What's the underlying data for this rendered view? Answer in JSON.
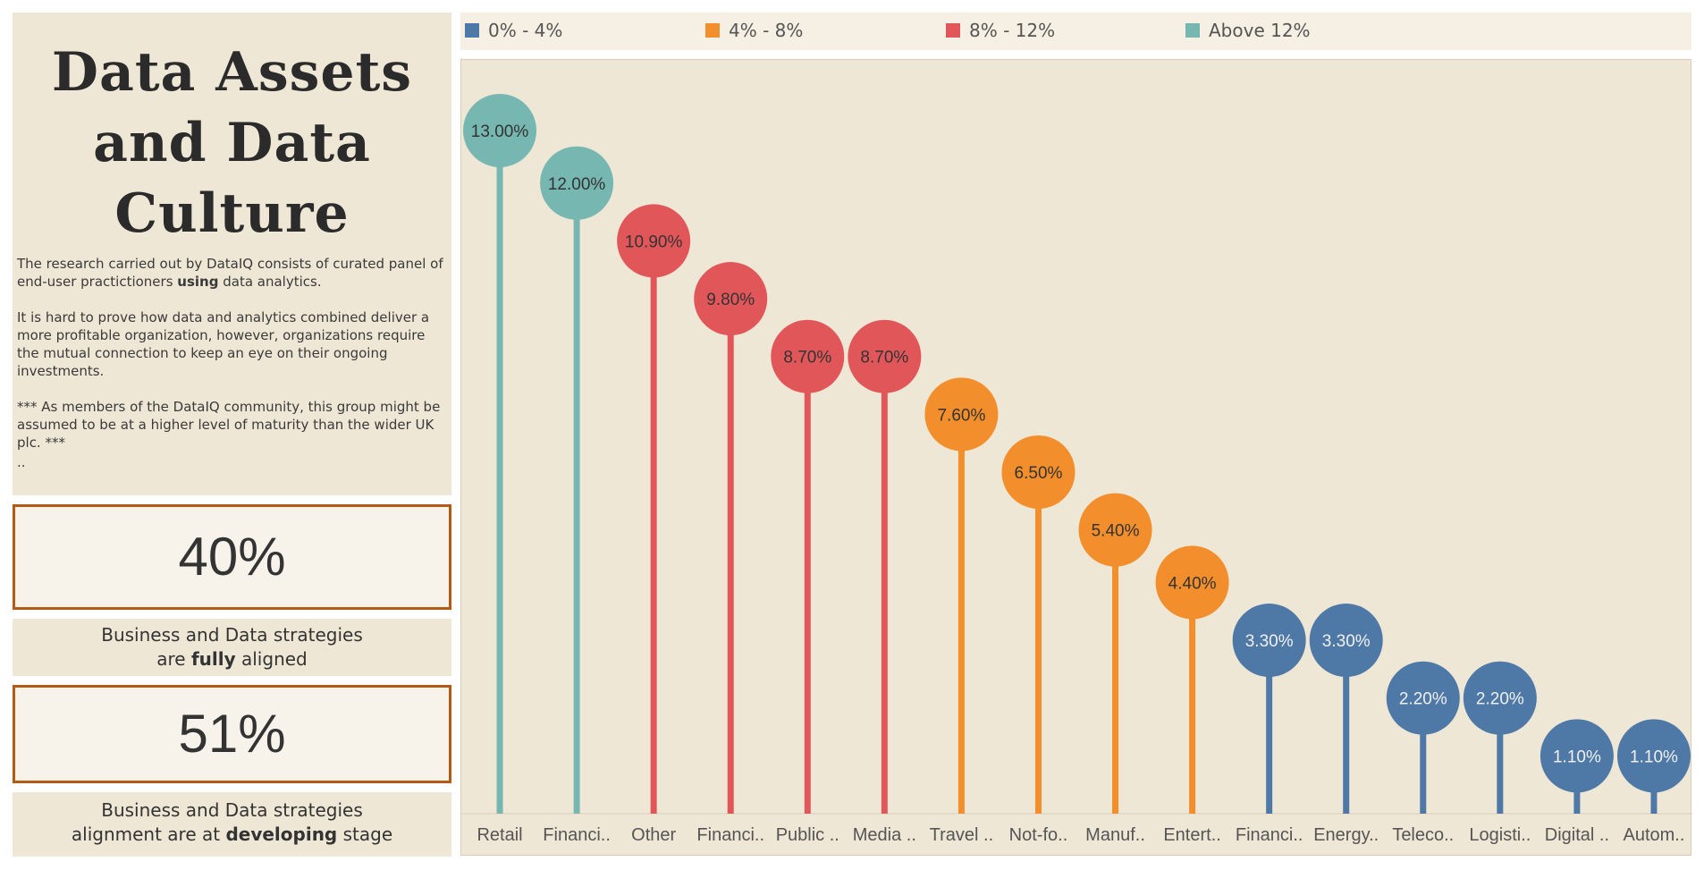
{
  "page": {
    "title": "Data Assets\nand Data\nCulture",
    "paragraph1_before": "The research carried out by DataIQ consists of curated panel of end-user practictioners ",
    "paragraph1_bold": "using",
    "paragraph1_after": " data analytics.",
    "paragraph2": "It is hard to prove how data and analytics combined deliver a more profitable organization, however, organizations require the mutual connection to keep an eye on their ongoing investments.",
    "paragraph3": "*** As members of the DataIQ community, this group might be assumed to be at a higher level of maturity than the wider UK plc. ***",
    "dots": "..",
    "kpi1": {
      "value": "40%",
      "label_line1": "Business and Data strategies",
      "label_line2_before": "are ",
      "label_line2_bold": "fully",
      "label_line2_after": " aligned"
    },
    "kpi2": {
      "value": "51%",
      "label_line1": "Business and Data strategies",
      "label_line2_before": "alignment are at ",
      "label_line2_bold": "developing",
      "label_line2_after": " stage"
    }
  },
  "legend": [
    {
      "label": "0% - 4%",
      "color": "#4e79a7"
    },
    {
      "label": "4% - 8%",
      "color": "#f28e2b"
    },
    {
      "label": "8% - 12%",
      "color": "#e15759"
    },
    {
      "label": "Above 12%",
      "color": "#76b7b2"
    }
  ],
  "chart_data": {
    "type": "lollipop",
    "categories": [
      "Retail",
      "Financi..",
      "Other",
      "Financi..",
      "Public ..",
      "Media ..",
      "Travel ..",
      "Not-fo..",
      "Manuf..",
      "Entert..",
      "Financi..",
      "Energy..",
      "Teleco..",
      "Logisti..",
      "Digital ..",
      "Autom.."
    ],
    "values": [
      13.0,
      12.0,
      10.9,
      9.8,
      8.7,
      8.7,
      7.6,
      6.5,
      5.4,
      4.4,
      3.3,
      3.3,
      2.2,
      2.2,
      1.1,
      1.1
    ],
    "labels": [
      "13.00%",
      "12.00%",
      "10.90%",
      "9.80%",
      "8.70%",
      "8.70%",
      "7.60%",
      "6.50%",
      "5.40%",
      "4.40%",
      "3.30%",
      "3.30%",
      "2.20%",
      "2.20%",
      "1.10%",
      "1.10%"
    ],
    "groups": [
      "Above 12%",
      "Above 12%",
      "8% - 12%",
      "8% - 12%",
      "8% - 12%",
      "8% - 12%",
      "4% - 8%",
      "4% - 8%",
      "4% - 8%",
      "4% - 8%",
      "0% - 4%",
      "0% - 4%",
      "0% - 4%",
      "0% - 4%",
      "0% - 4%",
      "0% - 4%"
    ],
    "colors": {
      "0% - 4%": "#4e79a7",
      "4% - 8%": "#f28e2b",
      "8% - 12%": "#e15759",
      "Above 12%": "#76b7b2"
    },
    "label_colors": {
      "0% - 4%": "#f0f0f0",
      "4% - 8%": "#333333",
      "8% - 12%": "#333333",
      "Above 12%": "#333333"
    },
    "ylim": [
      0,
      13.0
    ],
    "grid": false,
    "legend_position": "top"
  }
}
